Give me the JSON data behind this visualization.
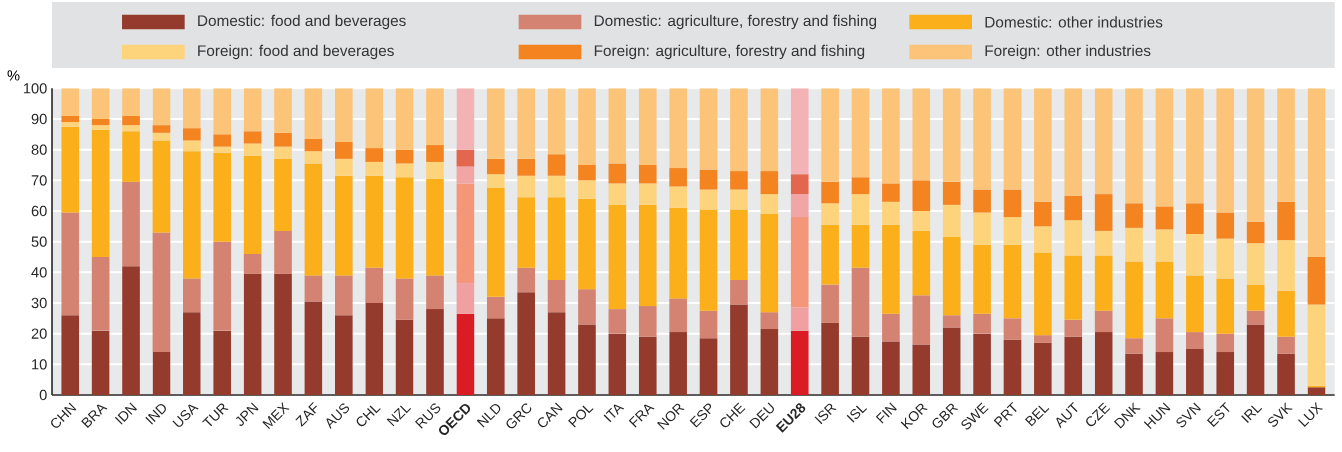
{
  "chart_data": {
    "type": "bar",
    "stacked": true,
    "ylabel": "%",
    "ylim": [
      0,
      100
    ],
    "yticks": [
      0,
      10,
      20,
      30,
      40,
      50,
      60,
      70,
      80,
      90,
      100
    ],
    "grid": "y",
    "legend": "top",
    "categories": [
      "CHN",
      "BRA",
      "IDN",
      "IND",
      "USA",
      "TUR",
      "JPN",
      "MEX",
      "ZAF",
      "AUS",
      "CHL",
      "NZL",
      "RUS",
      "**OECD**",
      "NLD",
      "GRC",
      "CAN",
      "POL",
      "ITA",
      "FRA",
      "NOR",
      "ESP",
      "CHE",
      "DEU",
      "**EU28**",
      "ISR",
      "ISL",
      "FIN",
      "KOR",
      "GBR",
      "SWE",
      "PRT",
      "BEL",
      "AUT",
      "CZE",
      "DNK",
      "HUN",
      "SVN",
      "EST",
      "IRL",
      "SVK",
      "LUX"
    ],
    "series": [
      {
        "name": "Domestic: food and beverages",
        "color": "#943b2e",
        "colors": [
          "#943b2e",
          "#943b2e",
          "#943b2e",
          "#943b2e",
          "#943b2e",
          "#943b2e",
          "#943b2e",
          "#943b2e",
          "#943b2e",
          "#943b2e",
          "#943b2e",
          "#943b2e",
          "#943b2e",
          "#dc1c24",
          "#943b2e",
          "#943b2e",
          "#943b2e",
          "#943b2e",
          "#943b2e",
          "#943b2e",
          "#943b2e",
          "#943b2e",
          "#943b2e",
          "#943b2e",
          "#dc1c24",
          "#943b2e",
          "#943b2e",
          "#943b2e",
          "#943b2e",
          "#943b2e",
          "#943b2e",
          "#943b2e",
          "#943b2e",
          "#943b2e",
          "#943b2e",
          "#943b2e",
          "#943b2e",
          "#943b2e",
          "#943b2e",
          "#943b2e",
          "#943b2e",
          "#943b2e"
        ],
        "values": [
          26,
          21,
          42,
          14,
          27,
          21,
          39.5,
          39.5,
          30.5,
          26,
          30,
          24.5,
          28,
          26.5,
          25,
          33.5,
          27,
          23,
          20,
          19,
          20.5,
          18.5,
          29.5,
          21.5,
          21,
          23.5,
          19,
          17.5,
          16.5,
          22,
          20,
          18,
          17,
          19,
          20.5,
          13.5,
          14,
          15,
          14,
          23,
          13.5,
          2.5
        ]
      },
      {
        "name": "Domestic: agriculture, forestry and fishing",
        "color": "#d48271",
        "colors": [
          "#d48271",
          "#d48271",
          "#d48271",
          "#d48271",
          "#d48271",
          "#d48271",
          "#d48271",
          "#d48271",
          "#d48271",
          "#d48271",
          "#d48271",
          "#d48271",
          "#d48271",
          "#f0a0a3",
          "#d48271",
          "#d48271",
          "#d48271",
          "#d48271",
          "#d48271",
          "#d48271",
          "#d48271",
          "#d48271",
          "#d48271",
          "#d48271",
          "#f0a0a3",
          "#d48271",
          "#d48271",
          "#d48271",
          "#d48271",
          "#d48271",
          "#d48271",
          "#d48271",
          "#d48271",
          "#d48271",
          "#d48271",
          "#d48271",
          "#d48271",
          "#d48271",
          "#d48271",
          "#d48271",
          "#d48271",
          "#d48271"
        ],
        "values": [
          33.5,
          24,
          27.5,
          39,
          11,
          29,
          6.5,
          14,
          8.5,
          13,
          11.5,
          13.5,
          11,
          10,
          7,
          8,
          10.5,
          11.5,
          8,
          10,
          11,
          9,
          8,
          5.5,
          7.5,
          12.5,
          22.5,
          9,
          16,
          4,
          6.5,
          7,
          2.5,
          5.5,
          7,
          5,
          11,
          5.5,
          6,
          4.5,
          5.5,
          0
        ]
      },
      {
        "name": "Domestic: other industries",
        "color": "#fbb01b",
        "colors": [
          "#fbb01b",
          "#fbb01b",
          "#fbb01b",
          "#fbb01b",
          "#fbb01b",
          "#fbb01b",
          "#fbb01b",
          "#fbb01b",
          "#fbb01b",
          "#fbb01b",
          "#fbb01b",
          "#fbb01b",
          "#fbb01b",
          "#f39679",
          "#fbb01b",
          "#fbb01b",
          "#fbb01b",
          "#fbb01b",
          "#fbb01b",
          "#fbb01b",
          "#fbb01b",
          "#fbb01b",
          "#fbb01b",
          "#fbb01b",
          "#f39679",
          "#fbb01b",
          "#fbb01b",
          "#fbb01b",
          "#fbb01b",
          "#fbb01b",
          "#fbb01b",
          "#fbb01b",
          "#fbb01b",
          "#fbb01b",
          "#fbb01b",
          "#fbb01b",
          "#fbb01b",
          "#fbb01b",
          "#fbb01b",
          "#fbb01b",
          "#fbb01b",
          "#fbb01b"
        ],
        "values": [
          28,
          41.5,
          16.5,
          30,
          41.5,
          29,
          32,
          23.5,
          36.5,
          32.5,
          30,
          33,
          31.5,
          32.5,
          35.5,
          23,
          27,
          29.5,
          34,
          33,
          29.5,
          33,
          23,
          32,
          29.5,
          19.5,
          14,
          29,
          21,
          25.5,
          22.5,
          24,
          27,
          21,
          18,
          25,
          18.5,
          18.5,
          18,
          8.5,
          15,
          0.5
        ]
      },
      {
        "name": "Foreign: food and beverages",
        "color": "#fdd47b",
        "colors": [
          "#fdd47b",
          "#fdd47b",
          "#fdd47b",
          "#fdd47b",
          "#fdd47b",
          "#fdd47b",
          "#fdd47b",
          "#fdd47b",
          "#fdd47b",
          "#fdd47b",
          "#fdd47b",
          "#fdd47b",
          "#fdd47b",
          "#f2a5a5",
          "#fdd47b",
          "#fdd47b",
          "#fdd47b",
          "#fdd47b",
          "#fdd47b",
          "#fdd47b",
          "#fdd47b",
          "#fdd47b",
          "#fdd47b",
          "#fdd47b",
          "#f2a5a5",
          "#fdd47b",
          "#fdd47b",
          "#fdd47b",
          "#fdd47b",
          "#fdd47b",
          "#fdd47b",
          "#fdd47b",
          "#fdd47b",
          "#fdd47b",
          "#fdd47b",
          "#fdd47b",
          "#fdd47b",
          "#fdd47b",
          "#fdd47b",
          "#fdd47b",
          "#fdd47b",
          "#fdd47b"
        ],
        "values": [
          1.5,
          1.5,
          2,
          2.5,
          3.5,
          2,
          4,
          4,
          4,
          5.5,
          4.5,
          4.5,
          5.5,
          5.5,
          4.5,
          7,
          7,
          6,
          7,
          7,
          7,
          6.5,
          6.5,
          6.5,
          7.5,
          7,
          10,
          7.5,
          6.5,
          10.5,
          10.5,
          9,
          8.5,
          11.5,
          8,
          11,
          10.5,
          13.5,
          13,
          13.5,
          16.5,
          26.5
        ]
      },
      {
        "name": "Foreign: agriculture, forestry and fishing",
        "color": "#f4841f",
        "colors": [
          "#f4841f",
          "#f4841f",
          "#f4841f",
          "#f4841f",
          "#f4841f",
          "#f4841f",
          "#f4841f",
          "#f4841f",
          "#f4841f",
          "#f4841f",
          "#f4841f",
          "#f4841f",
          "#f4841f",
          "#e3674e",
          "#f4841f",
          "#f4841f",
          "#f4841f",
          "#f4841f",
          "#f4841f",
          "#f4841f",
          "#f4841f",
          "#f4841f",
          "#f4841f",
          "#f4841f",
          "#e3674e",
          "#f4841f",
          "#f4841f",
          "#f4841f",
          "#f4841f",
          "#f4841f",
          "#f4841f",
          "#f4841f",
          "#f4841f",
          "#f4841f",
          "#f4841f",
          "#f4841f",
          "#f4841f",
          "#f4841f",
          "#f4841f",
          "#f4841f",
          "#f4841f",
          "#f4841f"
        ],
        "values": [
          2,
          2,
          3,
          2.5,
          4,
          4,
          4,
          4.5,
          4,
          5.5,
          4.5,
          4.5,
          5.5,
          5.5,
          5,
          5.5,
          7,
          5,
          6.5,
          6,
          6,
          6.5,
          6,
          7.5,
          6.5,
          7,
          5.5,
          6,
          10,
          7.5,
          7.5,
          9,
          8,
          8,
          12,
          8,
          7.5,
          10,
          8.5,
          7,
          12.5,
          15.5
        ]
      },
      {
        "name": "Foreign: other industries",
        "color": "#fcc478",
        "colors": [
          "#fcc478",
          "#fcc478",
          "#fcc478",
          "#fcc478",
          "#fcc478",
          "#fcc478",
          "#fcc478",
          "#fcc478",
          "#fcc478",
          "#fcc478",
          "#fcc478",
          "#fcc478",
          "#fcc478",
          "#f3b3b5",
          "#fcc478",
          "#fcc478",
          "#fcc478",
          "#fcc478",
          "#fcc478",
          "#fcc478",
          "#fcc478",
          "#fcc478",
          "#fcc478",
          "#fcc478",
          "#f3b3b5",
          "#fcc478",
          "#fcc478",
          "#fcc478",
          "#fcc478",
          "#fcc478",
          "#fcc478",
          "#fcc478",
          "#fcc478",
          "#fcc478",
          "#fcc478",
          "#fcc478",
          "#fcc478",
          "#fcc478",
          "#fcc478",
          "#fcc478",
          "#fcc478",
          "#fcc478"
        ],
        "values": [
          9,
          10,
          9,
          12,
          13,
          15,
          14,
          14.5,
          16.5,
          17.5,
          19.5,
          20,
          18.5,
          20,
          23,
          23,
          21.5,
          25,
          24.5,
          25,
          26,
          26.5,
          27,
          27,
          28,
          30.5,
          29,
          31,
          30,
          30.5,
          33,
          33,
          37,
          35,
          34.5,
          37.5,
          38.5,
          37.5,
          40.5,
          43.5,
          37,
          55
        ]
      }
    ]
  }
}
